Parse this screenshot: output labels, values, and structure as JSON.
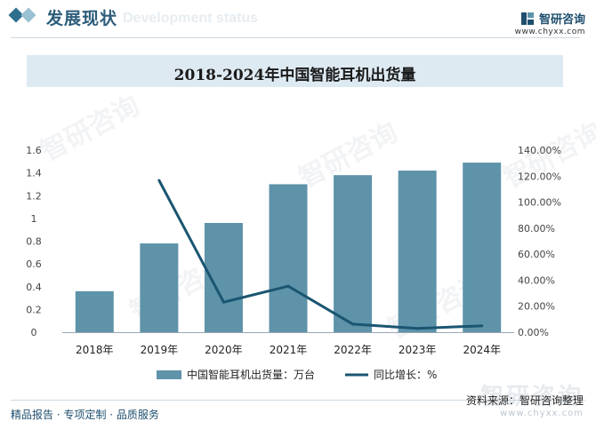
{
  "header": {
    "title": "发展现状",
    "subtitle_en": "Development status",
    "brand_name": "智研咨询",
    "brand_site": "www.chyxx.com"
  },
  "watermark": "智研咨询",
  "chart_data": {
    "type": "bar",
    "title": "2018-2024年中国智能耳机出货量",
    "categories": [
      "2018年",
      "2019年",
      "2020年",
      "2021年",
      "2022年",
      "2023年",
      "2024年"
    ],
    "series": [
      {
        "name": "中国智能耳机出货量：万台",
        "type": "bar",
        "axis": "left",
        "color": "#5e93a9",
        "values": [
          0.36,
          0.78,
          0.96,
          1.3,
          1.38,
          1.42,
          1.49
        ]
      },
      {
        "name": "同比增长：%",
        "type": "line",
        "axis": "right",
        "color": "#1a5571",
        "values": [
          null,
          116.7,
          23.1,
          35.4,
          6.2,
          2.9,
          4.9
        ]
      }
    ],
    "y_left": {
      "min": 0,
      "max": 1.6,
      "step": 0.2,
      "ticks": [
        "0",
        "0.2",
        "0.4",
        "0.6",
        "0.8",
        "1",
        "1.2",
        "1.4",
        "1.6"
      ]
    },
    "y_right": {
      "min": 0,
      "max": 140,
      "step": 20,
      "ticks": [
        "0.00%",
        "20.00%",
        "40.00%",
        "60.00%",
        "80.00%",
        "100.00%",
        "120.00%",
        "140.00%"
      ]
    },
    "grid": false,
    "legend": "bottom"
  },
  "footer": {
    "left_text": "精品报告 · 专项定制 · 品质服务",
    "source": "资料来源：智研咨询整理",
    "footer_brand": "智研咨询",
    "footer_site": "www.chyxx.com"
  }
}
